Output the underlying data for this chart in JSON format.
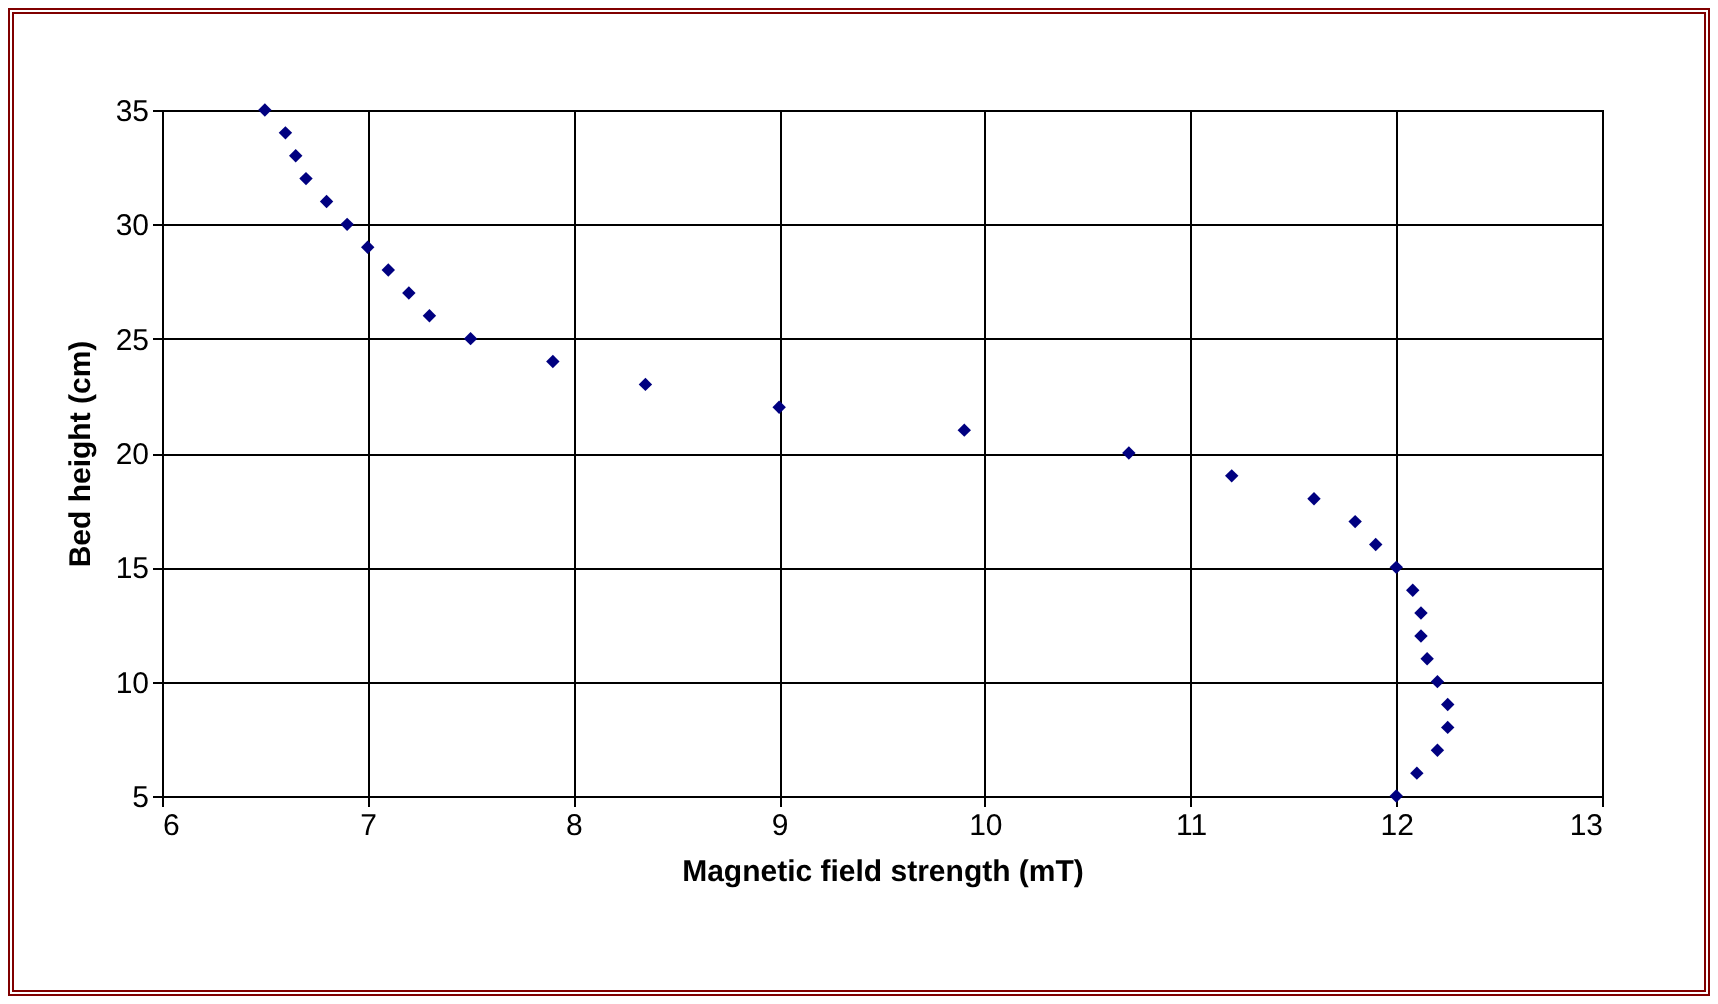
{
  "chart_data": {
    "type": "scatter",
    "xlabel": "Magnetic field strength (mT)",
    "ylabel": "Bed height (cm)",
    "x": [
      6.5,
      6.6,
      6.65,
      6.7,
      6.8,
      6.9,
      7.0,
      7.1,
      7.2,
      7.3,
      7.5,
      7.9,
      8.35,
      9.0,
      9.9,
      10.7,
      11.2,
      11.6,
      11.8,
      11.9,
      12.0,
      12.08,
      12.12,
      12.12,
      12.15,
      12.2,
      12.25,
      12.25,
      12.2,
      12.1,
      12.0
    ],
    "series": [
      {
        "color": "#000080",
        "values": [
          35,
          34,
          33,
          32,
          31,
          30,
          29,
          28,
          27,
          26,
          25,
          24,
          23,
          22,
          21,
          20,
          19,
          18,
          17,
          16,
          15,
          14,
          13,
          12,
          11,
          10,
          9,
          8,
          7,
          6,
          5
        ]
      }
    ],
    "xlim": [
      6,
      13
    ],
    "xticks": [
      6,
      7,
      8,
      9,
      10,
      11,
      12,
      13
    ],
    "ylim": [
      5,
      35
    ],
    "yticks": [
      5,
      10,
      15,
      20,
      25,
      30,
      35
    ],
    "grid": true,
    "legend": false,
    "marker": "diamond"
  }
}
